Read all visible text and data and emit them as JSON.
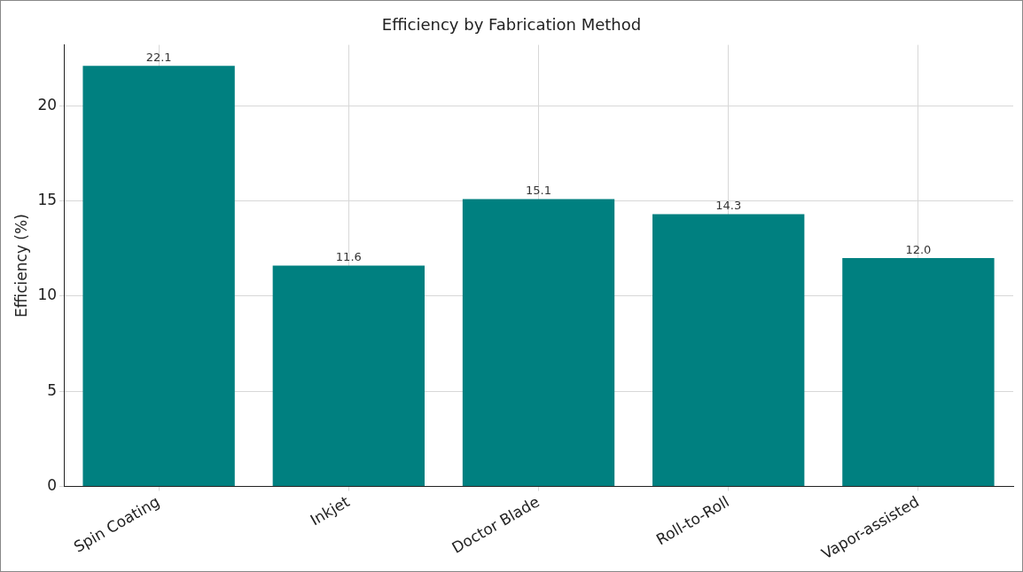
{
  "chart_data": {
    "type": "bar",
    "title": "Efficiency by Fabrication Method",
    "ylabel": "Efficiency (%)",
    "categories": [
      "Spin Coating",
      "Inkjet",
      "Doctor Blade",
      "Roll-to-Roll",
      "Vapor-assisted"
    ],
    "values": [
      22.1,
      11.6,
      15.1,
      14.3,
      12.0
    ],
    "value_labels": [
      "22.1",
      "11.6",
      "15.1",
      "14.3",
      "12.0"
    ],
    "color": "#008080",
    "ylim": [
      0,
      23.2
    ],
    "yticks": [
      0,
      5,
      10,
      15,
      20
    ],
    "grid": true,
    "legend": false
  }
}
